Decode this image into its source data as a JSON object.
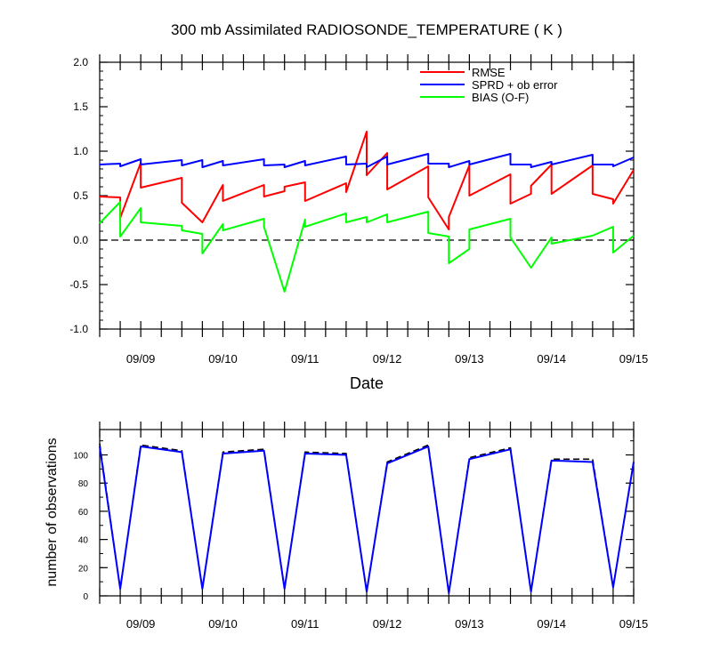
{
  "chart_data": [
    {
      "type": "line",
      "title": "300 mb Assimilated RADIOSONDE_TEMPERATURE ( K )",
      "xlabel": "Date",
      "ylabel": "",
      "x_tick_labels": [
        "09/09",
        "09/10",
        "09/11",
        "09/12",
        "09/13",
        "09/14",
        "09/15"
      ],
      "xlim": [
        0.0,
        6.5
      ],
      "ylim": [
        -1.0,
        2.0
      ],
      "y_tick_labels": [
        "2.0",
        "1.5",
        "1.0",
        "0.5",
        "0.0",
        "-0.5",
        "-1.0"
      ],
      "legend_position": "top-right",
      "reference_line": {
        "y": 0.0,
        "style": "dashed"
      },
      "series": [
        {
          "name": "RMSE",
          "color": "#ff0000",
          "points": [
            [
              0.0,
              0.49
            ],
            [
              0.25,
              0.48
            ],
            [
              0.25,
              0.25
            ],
            [
              0.5,
              0.87
            ],
            [
              0.5,
              0.59
            ],
            [
              1.0,
              0.7
            ],
            [
              1.0,
              0.42
            ],
            [
              1.25,
              0.2
            ],
            [
              1.5,
              0.62
            ],
            [
              1.5,
              0.44
            ],
            [
              2.0,
              0.62
            ],
            [
              2.0,
              0.49
            ],
            [
              2.25,
              0.55
            ],
            [
              2.25,
              0.6
            ],
            [
              2.5,
              0.65
            ],
            [
              2.5,
              0.44
            ],
            [
              3.0,
              0.64
            ],
            [
              3.0,
              0.54
            ],
            [
              3.25,
              1.22
            ],
            [
              3.25,
              0.73
            ],
            [
              3.5,
              0.98
            ],
            [
              3.5,
              0.57
            ],
            [
              4.0,
              0.83
            ],
            [
              4.0,
              0.48
            ],
            [
              4.25,
              0.12
            ],
            [
              4.25,
              0.26
            ],
            [
              4.5,
              0.84
            ],
            [
              4.5,
              0.5
            ],
            [
              5.0,
              0.74
            ],
            [
              5.0,
              0.41
            ],
            [
              5.25,
              0.52
            ],
            [
              5.25,
              0.61
            ],
            [
              5.5,
              0.85
            ],
            [
              5.5,
              0.52
            ],
            [
              6.0,
              0.84
            ],
            [
              6.0,
              0.52
            ],
            [
              6.25,
              0.46
            ],
            [
              6.25,
              0.41
            ],
            [
              6.5,
              0.79
            ]
          ]
        },
        {
          "name": "SPRD + ob error",
          "color": "#0000ff",
          "points": [
            [
              0.0,
              0.85
            ],
            [
              0.25,
              0.86
            ],
            [
              0.25,
              0.83
            ],
            [
              0.5,
              0.91
            ],
            [
              0.5,
              0.85
            ],
            [
              1.0,
              0.9
            ],
            [
              1.0,
              0.84
            ],
            [
              1.25,
              0.9
            ],
            [
              1.25,
              0.82
            ],
            [
              1.5,
              0.89
            ],
            [
              1.5,
              0.84
            ],
            [
              2.0,
              0.91
            ],
            [
              2.0,
              0.84
            ],
            [
              2.25,
              0.85
            ],
            [
              2.25,
              0.82
            ],
            [
              2.5,
              0.89
            ],
            [
              2.5,
              0.84
            ],
            [
              3.0,
              0.94
            ],
            [
              3.0,
              0.85
            ],
            [
              3.25,
              0.86
            ],
            [
              3.25,
              0.82
            ],
            [
              3.5,
              0.94
            ],
            [
              3.5,
              0.85
            ],
            [
              4.0,
              0.97
            ],
            [
              4.0,
              0.86
            ],
            [
              4.25,
              0.86
            ],
            [
              4.25,
              0.82
            ],
            [
              4.5,
              0.89
            ],
            [
              4.5,
              0.85
            ],
            [
              5.0,
              0.97
            ],
            [
              5.0,
              0.85
            ],
            [
              5.25,
              0.85
            ],
            [
              5.25,
              0.82
            ],
            [
              5.5,
              0.88
            ],
            [
              5.5,
              0.85
            ],
            [
              6.0,
              0.96
            ],
            [
              6.0,
              0.85
            ],
            [
              6.25,
              0.85
            ],
            [
              6.25,
              0.83
            ],
            [
              6.5,
              0.93
            ]
          ]
        },
        {
          "name": "BIAS (O-F)",
          "color": "#00ff00",
          "points": [
            [
              0.0,
              0.19
            ],
            [
              0.25,
              0.43
            ],
            [
              0.25,
              0.04
            ],
            [
              0.5,
              0.36
            ],
            [
              0.5,
              0.2
            ],
            [
              1.0,
              0.16
            ],
            [
              1.0,
              0.11
            ],
            [
              1.25,
              0.07
            ],
            [
              1.25,
              -0.15
            ],
            [
              1.5,
              0.18
            ],
            [
              1.5,
              0.11
            ],
            [
              2.0,
              0.24
            ],
            [
              2.0,
              0.15
            ],
            [
              2.25,
              -0.58
            ],
            [
              2.5,
              0.23
            ],
            [
              2.5,
              0.15
            ],
            [
              3.0,
              0.3
            ],
            [
              3.0,
              0.2
            ],
            [
              3.25,
              0.26
            ],
            [
              3.25,
              0.2
            ],
            [
              3.5,
              0.29
            ],
            [
              3.5,
              0.2
            ],
            [
              4.0,
              0.32
            ],
            [
              4.0,
              0.08
            ],
            [
              4.25,
              0.04
            ],
            [
              4.25,
              -0.26
            ],
            [
              4.5,
              -0.1
            ],
            [
              4.5,
              0.12
            ],
            [
              5.0,
              0.24
            ],
            [
              5.0,
              0.03
            ],
            [
              5.25,
              -0.31
            ],
            [
              5.5,
              0.03
            ],
            [
              5.5,
              -0.04
            ],
            [
              6.0,
              0.05
            ],
            [
              6.0,
              0.05
            ],
            [
              6.25,
              0.15
            ],
            [
              6.25,
              -0.14
            ],
            [
              6.5,
              0.05
            ]
          ]
        }
      ]
    },
    {
      "type": "line",
      "title": "",
      "xlabel": "",
      "ylabel": "number of observations",
      "x_tick_labels": [
        "09/09",
        "09/10",
        "09/11",
        "09/12",
        "09/13",
        "09/14",
        "09/15"
      ],
      "xlim": [
        0.0,
        6.5
      ],
      "ylim": [
        0,
        118
      ],
      "y_tick_labels": [
        "100",
        "80",
        "60",
        "40",
        "20",
        "0"
      ],
      "series": [
        {
          "name": "",
          "color": "#000000",
          "style": "dashed",
          "points": [
            [
              0.0,
              108
            ],
            [
              0.25,
              5
            ],
            [
              0.5,
              107
            ],
            [
              1.0,
              103
            ],
            [
              1.25,
              5
            ],
            [
              1.5,
              102
            ],
            [
              2.0,
              104
            ],
            [
              2.25,
              5
            ],
            [
              2.5,
              102
            ],
            [
              3.0,
              101
            ],
            [
              3.25,
              3
            ],
            [
              3.5,
              95
            ],
            [
              4.0,
              107
            ],
            [
              4.25,
              2
            ],
            [
              4.5,
              98
            ],
            [
              5.0,
              105
            ],
            [
              5.25,
              3
            ],
            [
              5.5,
              97
            ],
            [
              6.0,
              97
            ],
            [
              6.25,
              6
            ],
            [
              6.5,
              95
            ]
          ]
        },
        {
          "name": "",
          "color": "#0000ff",
          "style": "solid",
          "points": [
            [
              0.0,
              106
            ],
            [
              0.25,
              5
            ],
            [
              0.5,
              106
            ],
            [
              1.0,
              102
            ],
            [
              1.25,
              5
            ],
            [
              1.5,
              101
            ],
            [
              2.0,
              103
            ],
            [
              2.25,
              5
            ],
            [
              2.5,
              101
            ],
            [
              3.0,
              100
            ],
            [
              3.25,
              3
            ],
            [
              3.5,
              94
            ],
            [
              4.0,
              106
            ],
            [
              4.25,
              2
            ],
            [
              4.5,
              97
            ],
            [
              5.0,
              104
            ],
            [
              5.25,
              3
            ],
            [
              5.5,
              96
            ],
            [
              6.0,
              95
            ],
            [
              6.25,
              6
            ],
            [
              6.5,
              95
            ]
          ]
        }
      ]
    }
  ]
}
